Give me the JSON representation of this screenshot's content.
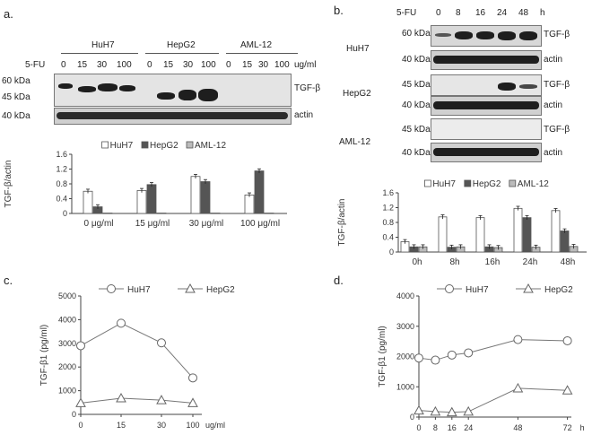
{
  "panel_a": {
    "label": "a.",
    "groups": [
      "HuH7",
      "HepG2",
      "AML-12"
    ],
    "fu_label": "5-FU",
    "doses": [
      "0",
      "15",
      "30",
      "100"
    ],
    "dose_unit": "ug/ml",
    "mw_top": [
      "60 kDa",
      "45 kDa"
    ],
    "mw_actin": "40 kDa",
    "blot_label": "TGF-β",
    "actin_label": "actin"
  },
  "panel_b": {
    "label": "b.",
    "fu_label": "5-FU",
    "times": [
      "0",
      "8",
      "16",
      "24",
      "48"
    ],
    "time_unit": "h",
    "rows": [
      {
        "cell": "HuH7",
        "mw": "60 kDa",
        "label": "TGF-β"
      },
      {
        "cell": "",
        "mw": "40 kDa",
        "label": "actin"
      },
      {
        "cell": "HepG2",
        "mw": "45 kDa",
        "label": "TGF-β"
      },
      {
        "cell": "",
        "mw": "40 kDa",
        "label": "actin"
      },
      {
        "cell": "AML-12",
        "mw": "45 kDa",
        "label": "TGF-β"
      },
      {
        "cell": "",
        "mw": "40 kDa",
        "label": "actin"
      }
    ]
  },
  "panel_c": {
    "label": "c."
  },
  "panel_d": {
    "label": "d."
  },
  "chart_data": [
    {
      "id": "a_bar",
      "type": "bar",
      "categories": [
        "0 μg/ml",
        "15 μg/ml",
        "30 μg/ml",
        "100 μg/ml"
      ],
      "series": [
        {
          "name": "HuH7",
          "values": [
            0.6,
            0.62,
            1.0,
            0.5
          ],
          "color": "#ffffff"
        },
        {
          "name": "HepG2",
          "values": [
            0.18,
            0.78,
            0.86,
            1.15
          ],
          "color": "#555555"
        },
        {
          "name": "AML-12",
          "values": [
            0.01,
            0.01,
            0.01,
            0.01
          ],
          "color": "#bbbbbb"
        }
      ],
      "ylabel": "TGF-β/actin",
      "ylim": [
        0,
        1.6
      ],
      "yticks": [
        "0",
        "0.4",
        "0.8",
        "1.2",
        "1.6"
      ],
      "legend": "top"
    },
    {
      "id": "b_bar",
      "type": "bar",
      "categories": [
        "0h",
        "8h",
        "16h",
        "24h",
        "48h"
      ],
      "series": [
        {
          "name": "HuH7",
          "values": [
            0.28,
            0.95,
            0.93,
            1.18,
            1.12
          ],
          "color": "#ffffff"
        },
        {
          "name": "HepG2",
          "values": [
            0.14,
            0.13,
            0.14,
            0.93,
            0.57
          ],
          "color": "#555555"
        },
        {
          "name": "AML-12",
          "values": [
            0.14,
            0.14,
            0.12,
            0.13,
            0.15
          ],
          "color": "#bbbbbb"
        }
      ],
      "ylabel": "TGF-β/actin",
      "ylim": [
        0,
        1.6
      ],
      "yticks": [
        "0",
        "0.4",
        "0.8",
        "1.2",
        "1.6"
      ],
      "legend": "top"
    },
    {
      "id": "c_line",
      "type": "line",
      "x": [
        0,
        15,
        30,
        100
      ],
      "xticks": [
        "0",
        "15",
        "30",
        "100"
      ],
      "xunit": "ug/ml",
      "series": [
        {
          "name": "HuH7",
          "marker": "circle",
          "values": [
            2900,
            3850,
            3020,
            1540
          ]
        },
        {
          "name": "HepG2",
          "marker": "triangle",
          "values": [
            480,
            680,
            600,
            480
          ]
        }
      ],
      "ylabel": "TGF-β1  (pg/ml)",
      "ylim": [
        0,
        5000
      ],
      "yticks": [
        "0",
        "1000",
        "2000",
        "3000",
        "4000",
        "5000"
      ],
      "legend": "top"
    },
    {
      "id": "d_line",
      "type": "line",
      "x": [
        0,
        8,
        16,
        24,
        48,
        72
      ],
      "xticks": [
        "0",
        "8",
        "16",
        "24",
        "48",
        "72"
      ],
      "xunit": "h",
      "series": [
        {
          "name": "HuH7",
          "marker": "circle",
          "values": [
            1950,
            1880,
            2050,
            2120,
            2560,
            2520
          ]
        },
        {
          "name": "HepG2",
          "marker": "triangle",
          "values": [
            220,
            180,
            160,
            180,
            950,
            880
          ]
        }
      ],
      "ylabel": "TGF-β1  (pg/ml)",
      "ylim": [
        0,
        4000
      ],
      "yticks": [
        "0",
        "1000",
        "2000",
        "3000",
        "4000"
      ],
      "legend": "top"
    }
  ]
}
